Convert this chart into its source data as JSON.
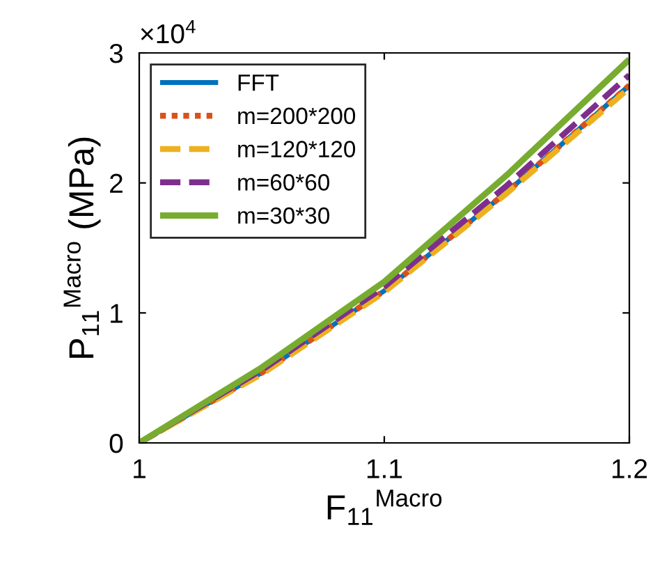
{
  "chart_data": {
    "type": "line",
    "xlabel": "F$_{11}$$^{Macro}$",
    "ylabel": "P$_{11}$$^{Macro}$ (MPa)",
    "annotations": [
      "×10$^{4}$"
    ],
    "x": [
      1,
      1.05,
      1.1,
      1.15,
      1.2
    ],
    "xlim": [
      1,
      1.2
    ],
    "xticks": [
      1,
      1.1,
      1.2
    ],
    "ylim": [
      0,
      3
    ],
    "yticks": [
      0,
      1,
      2,
      3
    ],
    "grid": false,
    "legend": "top left",
    "series": [
      {
        "name": "FFT",
        "color": "#0072bd",
        "line_style": "solid",
        "values": [
          0,
          0.54,
          1.17,
          1.93,
          2.75
        ]
      },
      {
        "name": "m=200*200",
        "color": "#d95319",
        "line_style": "dotted",
        "values": [
          0,
          0.54,
          1.17,
          1.93,
          2.75
        ]
      },
      {
        "name": "m=120*120",
        "color": "#edb120",
        "line_style": "dashed",
        "values": [
          0,
          0.53,
          1.16,
          1.92,
          2.73
        ]
      },
      {
        "name": "m=60*60",
        "color": "#7e2f8e",
        "line_style": "dashed",
        "values": [
          0,
          0.56,
          1.2,
          1.98,
          2.83
        ]
      },
      {
        "name": "m=30*30",
        "color": "#77ac30",
        "line_style": "solid",
        "values": [
          0,
          0.58,
          1.24,
          2.06,
          2.95
        ]
      }
    ]
  }
}
